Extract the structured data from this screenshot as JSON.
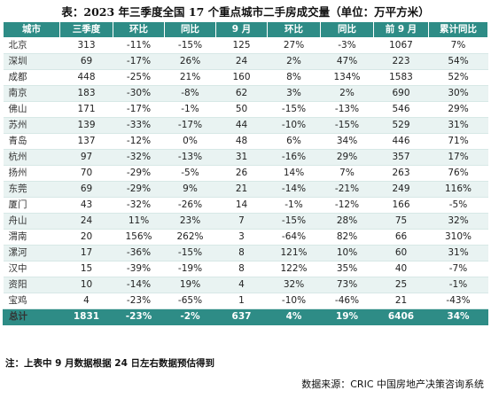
{
  "title": "表：2023 年三季度全国 17 个重点城市二手房成交量（单位：万平方米）",
  "headers": [
    "城市",
    "三季度",
    "环比",
    "同比",
    "9 月",
    "环比",
    "同比",
    "前 9 月",
    "累计同比"
  ],
  "rows": [
    [
      "北京",
      "313",
      "-11%",
      "-15%",
      "125",
      "27%",
      "-3%",
      "1067",
      "7%"
    ],
    [
      "深圳",
      "69",
      "-17%",
      "26%",
      "24",
      "2%",
      "47%",
      "223",
      "54%"
    ],
    [
      "成都",
      "448",
      "-25%",
      "21%",
      "160",
      "8%",
      "134%",
      "1583",
      "52%"
    ],
    [
      "南京",
      "183",
      "-30%",
      "-8%",
      "62",
      "3%",
      "2%",
      "690",
      "30%"
    ],
    [
      "佛山",
      "171",
      "-17%",
      "-1%",
      "50",
      "-15%",
      "-13%",
      "546",
      "29%"
    ],
    [
      "苏州",
      "139",
      "-33%",
      "-17%",
      "44",
      "-10%",
      "-15%",
      "529",
      "31%"
    ],
    [
      "青岛",
      "137",
      "-12%",
      "0%",
      "48",
      "6%",
      "34%",
      "446",
      "71%"
    ],
    [
      "杭州",
      "97",
      "-32%",
      "-13%",
      "31",
      "-16%",
      "29%",
      "357",
      "17%"
    ],
    [
      "扬州",
      "70",
      "-29%",
      "-5%",
      "26",
      "14%",
      "7%",
      "263",
      "76%"
    ],
    [
      "东莞",
      "69",
      "-29%",
      "9%",
      "21",
      "-14%",
      "-21%",
      "249",
      "116%"
    ],
    [
      "厦门",
      "43",
      "-32%",
      "-26%",
      "14",
      "-1%",
      "-12%",
      "166",
      "-5%"
    ],
    [
      "舟山",
      "24",
      "11%",
      "23%",
      "7",
      "-15%",
      "28%",
      "75",
      "32%"
    ],
    [
      "渭南",
      "20",
      "156%",
      "262%",
      "3",
      "-64%",
      "82%",
      "66",
      "310%"
    ],
    [
      "漯河",
      "17",
      "-36%",
      "-15%",
      "8",
      "121%",
      "10%",
      "60",
      "31%"
    ],
    [
      "汉中",
      "15",
      "-39%",
      "-19%",
      "8",
      "122%",
      "35%",
      "40",
      "-7%"
    ],
    [
      "资阳",
      "10",
      "-14%",
      "19%",
      "4",
      "32%",
      "73%",
      "25",
      "-1%"
    ],
    [
      "宝鸡",
      "4",
      "-23%",
      "-65%",
      "1",
      "-10%",
      "-46%",
      "21",
      "-43%"
    ]
  ],
  "total": [
    "总计",
    "1831",
    "-23%",
    "-2%",
    "637",
    "4%",
    "19%",
    "6406",
    "34%"
  ],
  "note": "注：上表中 9 月数据根据 24 日左右数据预估得到",
  "source": "数据来源：CRIC 中国房地产决策咨询系统"
}
